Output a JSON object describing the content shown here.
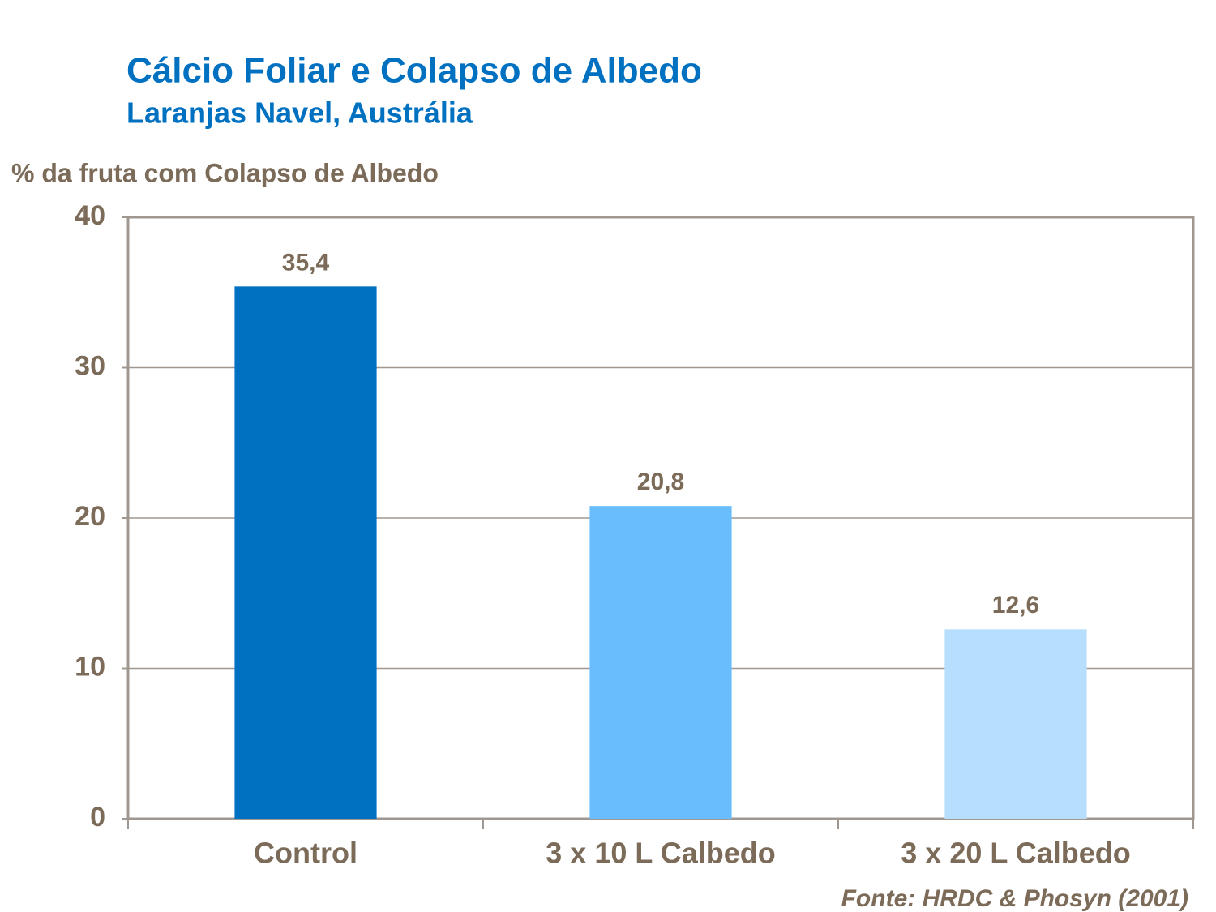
{
  "chart_data": {
    "type": "bar",
    "title": "Cálcio Foliar e Colapso de Albedo",
    "subtitle": "Laranjas Navel, Austrália",
    "y_label": "% da fruta com Colapso de Albedo",
    "source": "Fonte: HRDC & Phosyn (2001)",
    "categories": [
      "Control",
      "3 x 10 L Calbedo",
      "3 x 20 L Calbedo"
    ],
    "values": [
      35.4,
      20.8,
      12.6
    ],
    "value_labels": [
      "35,4",
      "20,8",
      "12,6"
    ],
    "colors": [
      "#0070c0",
      "#69bdfd",
      "#b7dffd"
    ],
    "ylim": [
      0,
      40
    ],
    "yticks": [
      0,
      10,
      20,
      30,
      40
    ],
    "grid": true
  }
}
